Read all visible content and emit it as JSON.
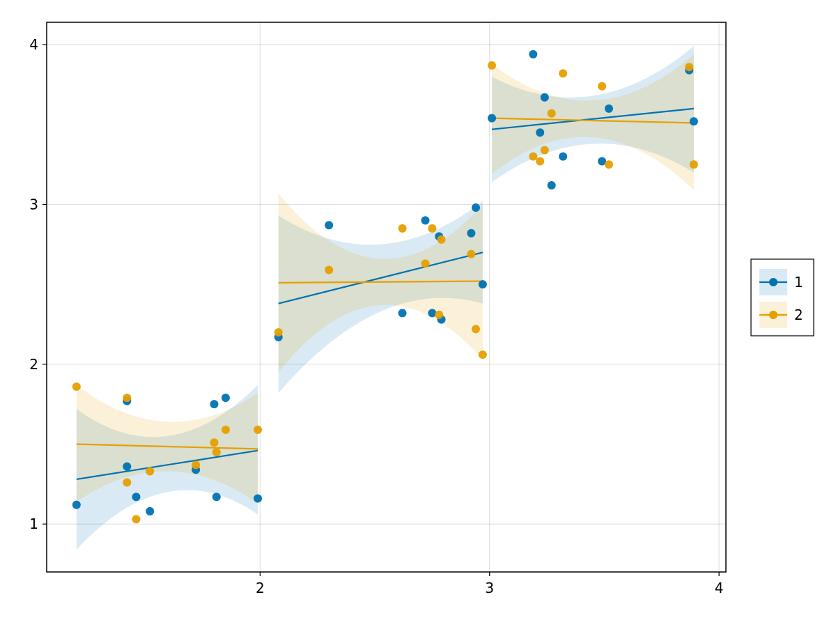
{
  "chart_data": {
    "type": "scatter",
    "title": "",
    "xlabel": "",
    "ylabel": "",
    "xlim": [
      1.07,
      4.03
    ],
    "ylim": [
      0.7,
      4.14
    ],
    "xticks": [
      2,
      3,
      4
    ],
    "yticks": [
      1,
      2,
      3,
      4
    ],
    "xtick_labels": [
      "2",
      "3",
      "4"
    ],
    "ytick_labels": [
      "1",
      "2",
      "3",
      "4"
    ],
    "grid": true,
    "legend": {
      "placement": "right",
      "entries": [
        "1",
        "2"
      ]
    },
    "series": [
      {
        "name": "1",
        "color": "#0072b2",
        "points": [
          [
            1.2,
            1.12
          ],
          [
            1.42,
            1.77
          ],
          [
            1.42,
            1.36
          ],
          [
            1.46,
            1.17
          ],
          [
            1.52,
            1.08
          ],
          [
            1.72,
            1.34
          ],
          [
            1.8,
            1.75
          ],
          [
            1.81,
            1.17
          ],
          [
            1.85,
            1.79
          ],
          [
            1.99,
            1.16
          ],
          [
            2.08,
            2.17
          ],
          [
            2.3,
            2.87
          ],
          [
            2.62,
            2.32
          ],
          [
            2.72,
            2.9
          ],
          [
            2.75,
            2.32
          ],
          [
            2.78,
            2.8
          ],
          [
            2.79,
            2.28
          ],
          [
            2.92,
            2.82
          ],
          [
            2.94,
            2.98
          ],
          [
            2.97,
            2.5
          ],
          [
            3.01,
            3.54
          ],
          [
            3.19,
            3.94
          ],
          [
            3.22,
            3.45
          ],
          [
            3.24,
            3.67
          ],
          [
            3.27,
            3.12
          ],
          [
            3.32,
            3.3
          ],
          [
            3.49,
            3.27
          ],
          [
            3.52,
            3.6
          ],
          [
            3.87,
            3.84
          ],
          [
            3.89,
            3.52
          ]
        ],
        "fit_segments": [
          {
            "x": [
              1.2,
              1.99
            ],
            "y": [
              1.28,
              1.46
            ],
            "band_lower": [
              0.84,
              1.06
            ],
            "band_upper": [
              1.72,
              1.87
            ],
            "band_mid_lower": 1.2,
            "band_mid_upper": 1.55
          },
          {
            "x": [
              2.08,
              2.97
            ],
            "y": [
              2.38,
              2.7
            ],
            "band_lower": [
              1.82,
              2.38
            ],
            "band_upper": [
              2.93,
              3.02
            ],
            "band_mid_lower": 2.33,
            "band_mid_upper": 2.75
          },
          {
            "x": [
              3.01,
              3.89
            ],
            "y": [
              3.47,
              3.6
            ],
            "band_lower": [
              3.14,
              3.2
            ],
            "band_upper": [
              3.8,
              3.99
            ],
            "band_mid_lower": 3.38,
            "band_mid_upper": 3.68
          }
        ]
      },
      {
        "name": "2",
        "color": "#e69f00",
        "points": [
          [
            1.2,
            1.86
          ],
          [
            1.42,
            1.79
          ],
          [
            1.42,
            1.26
          ],
          [
            1.46,
            1.03
          ],
          [
            1.52,
            1.33
          ],
          [
            1.72,
            1.37
          ],
          [
            1.8,
            1.51
          ],
          [
            1.81,
            1.45
          ],
          [
            1.85,
            1.59
          ],
          [
            1.99,
            1.59
          ],
          [
            2.08,
            2.2
          ],
          [
            2.3,
            2.59
          ],
          [
            2.62,
            2.85
          ],
          [
            2.72,
            2.63
          ],
          [
            2.75,
            2.85
          ],
          [
            2.78,
            2.31
          ],
          [
            2.79,
            2.78
          ],
          [
            2.92,
            2.69
          ],
          [
            2.94,
            2.22
          ],
          [
            2.97,
            2.06
          ],
          [
            3.01,
            3.87
          ],
          [
            3.19,
            3.3
          ],
          [
            3.22,
            3.27
          ],
          [
            3.24,
            3.34
          ],
          [
            3.27,
            3.57
          ],
          [
            3.32,
            3.82
          ],
          [
            3.49,
            3.74
          ],
          [
            3.52,
            3.25
          ],
          [
            3.87,
            3.86
          ],
          [
            3.89,
            3.25
          ]
        ],
        "fit_segments": [
          {
            "x": [
              1.2,
              1.99
            ],
            "y": [
              1.5,
              1.47
            ],
            "band_lower": [
              1.14,
              1.13
            ],
            "band_upper": [
              1.87,
              1.82
            ],
            "band_mid_lower": 1.33,
            "band_mid_upper": 1.64
          },
          {
            "x": [
              2.08,
              2.97
            ],
            "y": [
              2.51,
              2.52
            ],
            "band_lower": [
              1.95,
              2.03
            ],
            "band_upper": [
              3.07,
              3.0
            ],
            "band_mid_lower": 2.37,
            "band_mid_upper": 2.66
          },
          {
            "x": [
              3.01,
              3.89
            ],
            "y": [
              3.54,
              3.51
            ],
            "band_lower": [
              3.19,
              3.09
            ],
            "band_upper": [
              3.88,
              3.94
            ],
            "band_mid_lower": 3.42,
            "band_mid_upper": 3.65
          }
        ]
      }
    ]
  }
}
